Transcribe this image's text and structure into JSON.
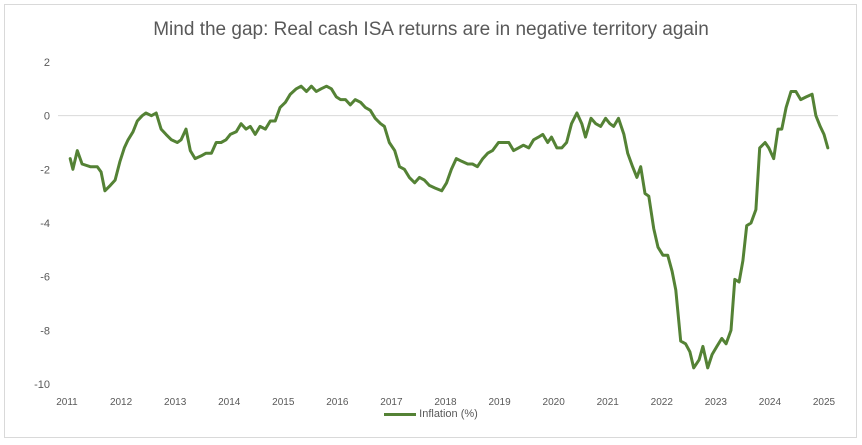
{
  "chart_data": {
    "type": "line",
    "title": "Mind the gap: Real cash ISA returns are in negative territory again",
    "xlabel": "",
    "ylabel": "",
    "ylim": [
      -10,
      2
    ],
    "yticks": [
      "2",
      "0",
      "-2",
      "-4",
      "-6",
      "-8",
      "-10"
    ],
    "ytick_values": [
      2,
      0,
      -2,
      -4,
      -6,
      -8,
      -10
    ],
    "xlim": [
      2011,
      2025
    ],
    "xticks": [
      "2011",
      "2012",
      "2013",
      "2014",
      "2015",
      "2016",
      "2017",
      "2018",
      "2019",
      "2020",
      "2021",
      "2022",
      "2023",
      "2024",
      "2025"
    ],
    "grid": "zero-line only",
    "legend": "bottom",
    "series": [
      {
        "name": "Inflation (%)",
        "color": "#548235",
        "x": [
          2011.06,
          2011.11,
          2011.19,
          2011.28,
          2011.43,
          2011.56,
          2011.63,
          2011.7,
          2011.8,
          2011.89,
          2011.98,
          2012.06,
          2012.13,
          2012.22,
          2012.3,
          2012.39,
          2012.46,
          2012.56,
          2012.65,
          2012.74,
          2012.83,
          2012.93,
          2013.04,
          2013.11,
          2013.2,
          2013.28,
          2013.37,
          2013.48,
          2013.57,
          2013.67,
          2013.76,
          2013.85,
          2013.94,
          2014.02,
          2014.13,
          2014.22,
          2014.31,
          2014.39,
          2014.48,
          2014.57,
          2014.67,
          2014.76,
          2014.85,
          2014.94,
          2015.04,
          2015.13,
          2015.24,
          2015.33,
          2015.43,
          2015.52,
          2015.61,
          2015.7,
          2015.8,
          2015.89,
          2015.98,
          2016.06,
          2016.15,
          2016.24,
          2016.33,
          2016.43,
          2016.52,
          2016.61,
          2016.7,
          2016.8,
          2016.87,
          2016.96,
          2017.06,
          2017.15,
          2017.24,
          2017.33,
          2017.43,
          2017.52,
          2017.61,
          2017.7,
          2017.81,
          2017.93,
          2018.02,
          2018.11,
          2018.2,
          2018.3,
          2018.41,
          2018.5,
          2018.59,
          2018.69,
          2018.78,
          2018.87,
          2018.98,
          2019.07,
          2019.17,
          2019.26,
          2019.35,
          2019.44,
          2019.54,
          2019.63,
          2019.72,
          2019.8,
          2019.89,
          2019.96,
          2020.06,
          2020.15,
          2020.24,
          2020.33,
          2020.43,
          2020.52,
          2020.59,
          2020.69,
          2020.78,
          2020.87,
          2020.96,
          2021.04,
          2021.11,
          2021.2,
          2021.3,
          2021.37,
          2021.46,
          2021.54,
          2021.61,
          2021.69,
          2021.76,
          2021.85,
          2021.93,
          2022.02,
          2022.11,
          2022.19,
          2022.26,
          2022.35,
          2022.44,
          2022.52,
          2022.59,
          2022.69,
          2022.76,
          2022.85,
          2022.93,
          2023.02,
          2023.11,
          2023.19,
          2023.28,
          2023.35,
          2023.43,
          2023.5,
          2023.57,
          2023.65,
          2023.74,
          2023.81,
          2023.91,
          2023.98,
          2024.07,
          2024.15,
          2024.22,
          2024.3,
          2024.39,
          2024.48,
          2024.57,
          2024.67,
          2024.78,
          2024.85,
          2024.93,
          2025.0,
          2025.07
        ],
        "values": [
          -1.6,
          -2.0,
          -1.3,
          -1.8,
          -1.9,
          -1.9,
          -2.1,
          -2.8,
          -2.6,
          -2.4,
          -1.7,
          -1.2,
          -0.9,
          -0.6,
          -0.2,
          0.0,
          0.1,
          0.0,
          0.1,
          -0.5,
          -0.7,
          -0.9,
          -1.0,
          -0.9,
          -0.5,
          -1.3,
          -1.6,
          -1.5,
          -1.4,
          -1.4,
          -1.0,
          -1.0,
          -0.9,
          -0.7,
          -0.6,
          -0.3,
          -0.5,
          -0.4,
          -0.7,
          -0.4,
          -0.5,
          -0.2,
          -0.2,
          0.3,
          0.5,
          0.8,
          1.0,
          1.1,
          0.9,
          1.1,
          0.9,
          1.0,
          1.1,
          1.0,
          0.7,
          0.6,
          0.6,
          0.4,
          0.6,
          0.5,
          0.3,
          0.2,
          -0.1,
          -0.3,
          -0.4,
          -1.0,
          -1.3,
          -1.9,
          -2.0,
          -2.3,
          -2.5,
          -2.3,
          -2.4,
          -2.6,
          -2.7,
          -2.8,
          -2.5,
          -2.0,
          -1.6,
          -1.7,
          -1.8,
          -1.8,
          -1.9,
          -1.6,
          -1.4,
          -1.3,
          -1.0,
          -1.0,
          -1.0,
          -1.3,
          -1.2,
          -1.1,
          -1.2,
          -0.9,
          -0.8,
          -0.7,
          -1.0,
          -0.8,
          -1.2,
          -1.2,
          -1.0,
          -0.3,
          0.1,
          -0.3,
          -0.8,
          -0.1,
          -0.3,
          -0.4,
          -0.1,
          -0.3,
          -0.4,
          -0.1,
          -0.7,
          -1.4,
          -1.9,
          -2.3,
          -1.9,
          -2.9,
          -3.0,
          -4.2,
          -4.9,
          -5.2,
          -5.2,
          -5.8,
          -6.5,
          -8.4,
          -8.5,
          -8.8,
          -9.4,
          -9.1,
          -8.6,
          -9.4,
          -8.9,
          -8.6,
          -8.3,
          -8.5,
          -8.0,
          -6.1,
          -6.2,
          -5.4,
          -4.1,
          -4.0,
          -3.5,
          -1.2,
          -1.0,
          -1.2,
          -1.6,
          -0.5,
          -0.5,
          0.3,
          0.9,
          0.9,
          0.6,
          0.7,
          0.8,
          0.0,
          -0.4,
          -0.7,
          -1.2
        ]
      }
    ]
  }
}
